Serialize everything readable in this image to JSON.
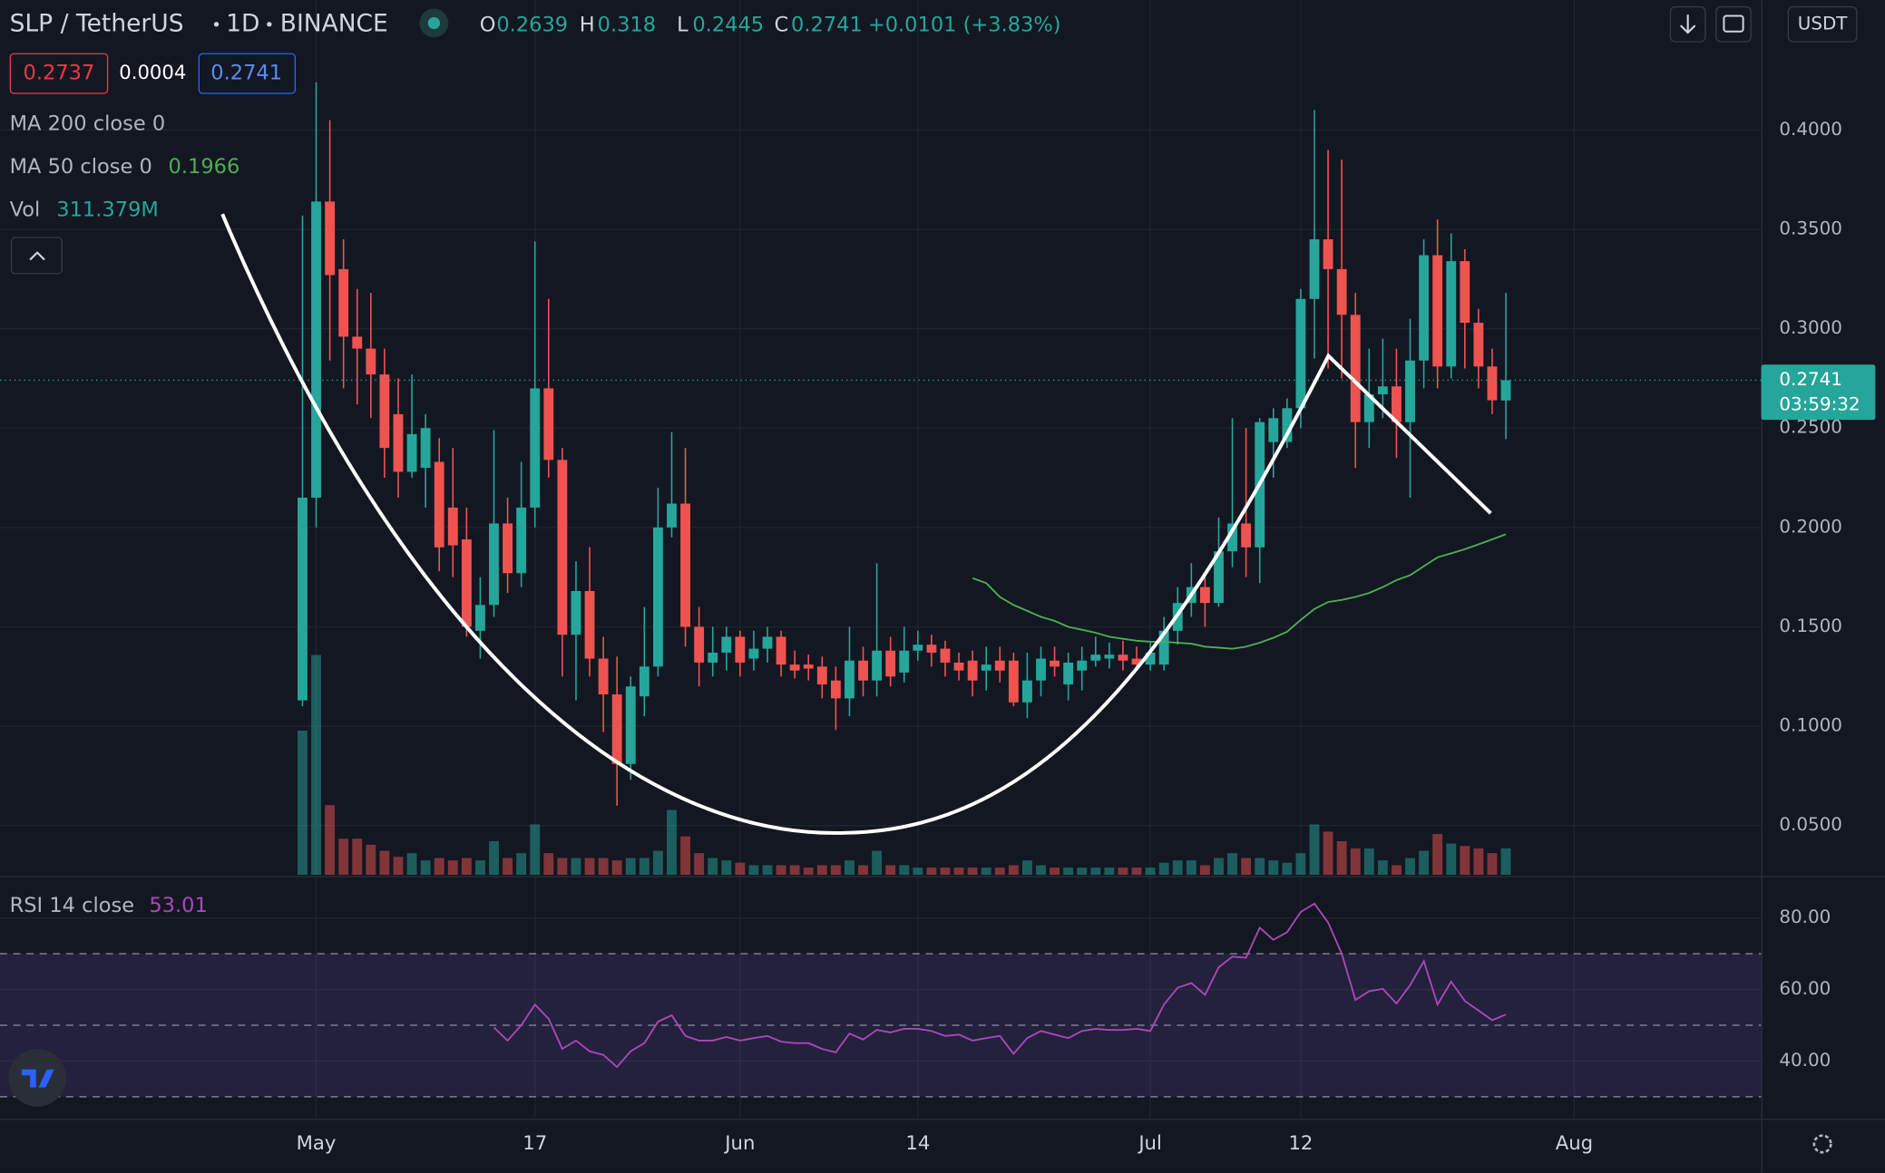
{
  "chart_data": {
    "type": "candlestick",
    "title": "SLP / TetherUS",
    "interval": "1D",
    "exchange": "BINANCE",
    "ohlc_labels": [
      "O",
      "H",
      "L",
      "C"
    ],
    "change": "+0.0101 (+3.83%)",
    "bid": 0.2737,
    "spread": 0.0004,
    "ask": 0.2741,
    "currency": "USDT",
    "countdown": "03:59:32",
    "up_color": "#26a69a",
    "down_color": "#ef5350",
    "grid": true,
    "xlim": [
      -23.12,
      105.67
    ],
    "xticks": [
      {
        "value": 0,
        "label": "May"
      },
      {
        "value": 16,
        "label": "17"
      },
      {
        "value": 31,
        "label": "Jun"
      },
      {
        "value": 44,
        "label": "14"
      },
      {
        "value": 61,
        "label": "Jul"
      },
      {
        "value": 72,
        "label": "12"
      },
      {
        "value": 92,
        "label": "Aug"
      }
    ],
    "ylim": [
      0.0252,
      0.4653
    ],
    "yticks": [
      {
        "value": 0.05,
        "label": "0.0500"
      },
      {
        "value": 0.1,
        "label": "0.1000"
      },
      {
        "value": 0.15,
        "label": "0.1500"
      },
      {
        "value": 0.2,
        "label": "0.2000"
      },
      {
        "value": 0.25,
        "label": "0.2500"
      },
      {
        "value": 0.3,
        "label": "0.3000"
      },
      {
        "value": 0.35,
        "label": "0.3500"
      },
      {
        "value": 0.4,
        "label": "0.4000"
      }
    ],
    "x": [
      -1,
      0,
      1,
      2,
      3,
      4,
      5,
      6,
      7,
      8,
      9,
      10,
      11,
      12,
      13,
      14,
      15,
      16,
      17,
      18,
      19,
      20,
      21,
      22,
      23,
      24,
      25,
      26,
      27,
      28,
      29,
      30,
      31,
      32,
      33,
      34,
      35,
      36,
      37,
      38,
      39,
      40,
      41,
      42,
      43,
      44,
      45,
      46,
      47,
      48,
      49,
      50,
      51,
      52,
      53,
      54,
      55,
      56,
      57,
      58,
      59,
      60,
      61,
      62,
      63,
      64,
      65,
      66,
      67,
      68,
      69,
      70,
      71,
      72,
      73,
      74,
      75,
      76,
      77,
      78,
      79,
      80,
      81,
      82,
      83,
      84,
      85,
      86,
      87
    ],
    "open": [
      0.113,
      0.215,
      0.364,
      0.33,
      0.296,
      0.29,
      0.277,
      0.257,
      0.228,
      0.23,
      0.233,
      0.21,
      0.194,
      0.148,
      0.161,
      0.202,
      0.177,
      0.21,
      0.27,
      0.234,
      0.146,
      0.168,
      0.134,
      0.116,
      0.081,
      0.115,
      0.13,
      0.2,
      0.212,
      0.15,
      0.132,
      0.137,
      0.145,
      0.134,
      0.139,
      0.145,
      0.131,
      0.131,
      0.13,
      0.123,
      0.114,
      0.133,
      0.123,
      0.138,
      0.127,
      0.138,
      0.141,
      0.139,
      0.132,
      0.133,
      0.128,
      0.133,
      0.133,
      0.112,
      0.123,
      0.133,
      0.121,
      0.128,
      0.133,
      0.134,
      0.136,
      0.134,
      0.131,
      0.131,
      0.148,
      0.162,
      0.17,
      0.162,
      0.188,
      0.202,
      0.19,
      0.243,
      0.243,
      0.26,
      0.315,
      0.345,
      0.33,
      0.307,
      0.253,
      0.267,
      0.271,
      0.253,
      0.284,
      0.337,
      0.281,
      0.334,
      0.303,
      0.281,
      0.2639
    ],
    "high": [
      0.357,
      0.424,
      0.405,
      0.345,
      0.32,
      0.318,
      0.29,
      0.275,
      0.277,
      0.257,
      0.245,
      0.24,
      0.21,
      0.175,
      0.249,
      0.215,
      0.233,
      0.344,
      0.315,
      0.24,
      0.183,
      0.19,
      0.145,
      0.135,
      0.125,
      0.16,
      0.22,
      0.248,
      0.24,
      0.16,
      0.15,
      0.15,
      0.148,
      0.148,
      0.15,
      0.148,
      0.138,
      0.136,
      0.135,
      0.13,
      0.15,
      0.14,
      0.182,
      0.145,
      0.15,
      0.148,
      0.146,
      0.143,
      0.137,
      0.138,
      0.14,
      0.14,
      0.137,
      0.137,
      0.14,
      0.14,
      0.137,
      0.14,
      0.145,
      0.142,
      0.143,
      0.14,
      0.142,
      0.155,
      0.17,
      0.182,
      0.175,
      0.205,
      0.255,
      0.25,
      0.255,
      0.26,
      0.265,
      0.32,
      0.41,
      0.39,
      0.385,
      0.318,
      0.29,
      0.295,
      0.29,
      0.305,
      0.345,
      0.355,
      0.348,
      0.34,
      0.31,
      0.29,
      0.318
    ],
    "low": [
      0.11,
      0.2,
      0.284,
      0.27,
      0.262,
      0.255,
      0.225,
      0.215,
      0.225,
      0.21,
      0.178,
      0.175,
      0.145,
      0.134,
      0.155,
      0.167,
      0.17,
      0.2,
      0.225,
      0.125,
      0.113,
      0.125,
      0.097,
      0.06,
      0.073,
      0.105,
      0.125,
      0.195,
      0.14,
      0.12,
      0.125,
      0.128,
      0.125,
      0.128,
      0.132,
      0.125,
      0.124,
      0.123,
      0.114,
      0.098,
      0.105,
      0.115,
      0.115,
      0.12,
      0.122,
      0.133,
      0.13,
      0.125,
      0.123,
      0.115,
      0.118,
      0.122,
      0.11,
      0.104,
      0.115,
      0.125,
      0.113,
      0.118,
      0.13,
      0.129,
      0.128,
      0.128,
      0.128,
      0.128,
      0.141,
      0.155,
      0.15,
      0.16,
      0.18,
      0.175,
      0.172,
      0.225,
      0.24,
      0.25,
      0.285,
      0.28,
      0.275,
      0.23,
      0.24,
      0.255,
      0.235,
      0.215,
      0.27,
      0.27,
      0.275,
      0.28,
      0.27,
      0.257,
      0.2445
    ],
    "close": [
      0.215,
      0.364,
      0.327,
      0.296,
      0.29,
      0.277,
      0.24,
      0.228,
      0.247,
      0.25,
      0.19,
      0.191,
      0.15,
      0.161,
      0.202,
      0.177,
      0.21,
      0.27,
      0.234,
      0.146,
      0.168,
      0.134,
      0.116,
      0.081,
      0.12,
      0.13,
      0.2,
      0.212,
      0.15,
      0.132,
      0.137,
      0.145,
      0.132,
      0.139,
      0.145,
      0.131,
      0.128,
      0.129,
      0.121,
      0.114,
      0.133,
      0.123,
      0.138,
      0.125,
      0.138,
      0.141,
      0.137,
      0.132,
      0.128,
      0.123,
      0.131,
      0.128,
      0.112,
      0.123,
      0.134,
      0.13,
      0.132,
      0.133,
      0.136,
      0.136,
      0.133,
      0.131,
      0.137,
      0.148,
      0.162,
      0.17,
      0.162,
      0.188,
      0.202,
      0.19,
      0.253,
      0.255,
      0.26,
      0.315,
      0.345,
      0.33,
      0.307,
      0.253,
      0.267,
      0.271,
      0.253,
      0.284,
      0.337,
      0.281,
      0.334,
      0.303,
      0.281,
      0.264,
      0.2741
    ],
    "volume": {
      "name": "Vol",
      "last_label": "311.379M",
      "values": [
        1698,
        2589,
        821,
        425,
        425,
        354,
        283,
        212,
        255,
        170,
        198,
        170,
        198,
        170,
        396,
        198,
        255,
        594,
        255,
        198,
        198,
        198,
        198,
        170,
        198,
        198,
        283,
        764,
        453,
        255,
        198,
        170,
        142,
        113,
        113,
        113,
        113,
        85,
        113,
        113,
        170,
        113,
        283,
        113,
        113,
        85,
        85,
        85,
        85,
        85,
        85,
        85,
        113,
        170,
        113,
        85,
        85,
        85,
        85,
        85,
        85,
        85,
        85,
        142,
        170,
        170,
        113,
        198,
        255,
        198,
        198,
        170,
        142,
        255,
        594,
        509,
        396,
        311,
        311,
        170,
        113,
        198,
        283,
        481,
        368,
        340,
        311,
        255,
        311.379
      ]
    },
    "ma200": {
      "name": "MA 200 close 0"
    },
    "ma50": {
      "name": "MA 50 close 0",
      "color": "#4caf50",
      "values": [
        null,
        null,
        null,
        null,
        null,
        null,
        null,
        null,
        null,
        null,
        null,
        null,
        null,
        null,
        null,
        null,
        null,
        null,
        null,
        null,
        null,
        null,
        null,
        null,
        null,
        null,
        null,
        null,
        null,
        null,
        null,
        null,
        null,
        null,
        null,
        null,
        null,
        null,
        null,
        null,
        null,
        null,
        null,
        null,
        null,
        null,
        null,
        null,
        null,
        0.1745,
        0.172,
        0.165,
        0.161,
        0.158,
        0.155,
        0.153,
        0.15,
        0.1485,
        0.147,
        0.145,
        0.144,
        0.143,
        0.1425,
        0.1425,
        0.142,
        0.1415,
        0.14,
        0.1395,
        0.139,
        0.14,
        0.142,
        0.1445,
        0.1475,
        0.1535,
        0.159,
        0.1625,
        0.1635,
        0.165,
        0.167,
        0.17,
        0.1735,
        0.176,
        0.1805,
        0.185,
        0.187,
        0.189,
        0.1915,
        0.194,
        0.1966
      ]
    },
    "rsi": {
      "name": "RSI 14 close",
      "color": "#ab47bc",
      "ylim": [
        24.2,
        91.4
      ],
      "yticks": [
        {
          "value": 40,
          "label": "40.00"
        },
        {
          "value": 60,
          "label": "60.00"
        },
        {
          "value": 80,
          "label": "80.00"
        }
      ],
      "levels": [
        30,
        50,
        70
      ],
      "values": [
        null,
        null,
        null,
        null,
        null,
        null,
        null,
        null,
        null,
        null,
        null,
        null,
        null,
        null,
        49.4,
        45.7,
        50,
        55.8,
        51.8,
        43.4,
        45.7,
        42.7,
        41.7,
        38.3,
        42.7,
        45,
        51,
        52.8,
        47,
        45.7,
        45.7,
        46.7,
        45.7,
        46.4,
        47,
        45.4,
        45,
        45,
        43.4,
        42.4,
        47.7,
        46,
        48.7,
        48,
        49,
        49,
        48.4,
        47,
        47.4,
        45.7,
        46.4,
        47,
        42,
        46.4,
        48.4,
        47.4,
        46.4,
        48.4,
        49,
        48.7,
        48.7,
        49,
        48.4,
        55.8,
        60.5,
        61.8,
        58.5,
        66.2,
        69.2,
        68.9,
        77.3,
        73.9,
        76,
        81.7,
        84,
        78.7,
        70,
        57.1,
        59.5,
        60.2,
        56.1,
        61.2,
        67.9,
        55.8,
        62.2,
        56.8,
        54.1,
        51.4,
        53.01
      ]
    }
  }
}
